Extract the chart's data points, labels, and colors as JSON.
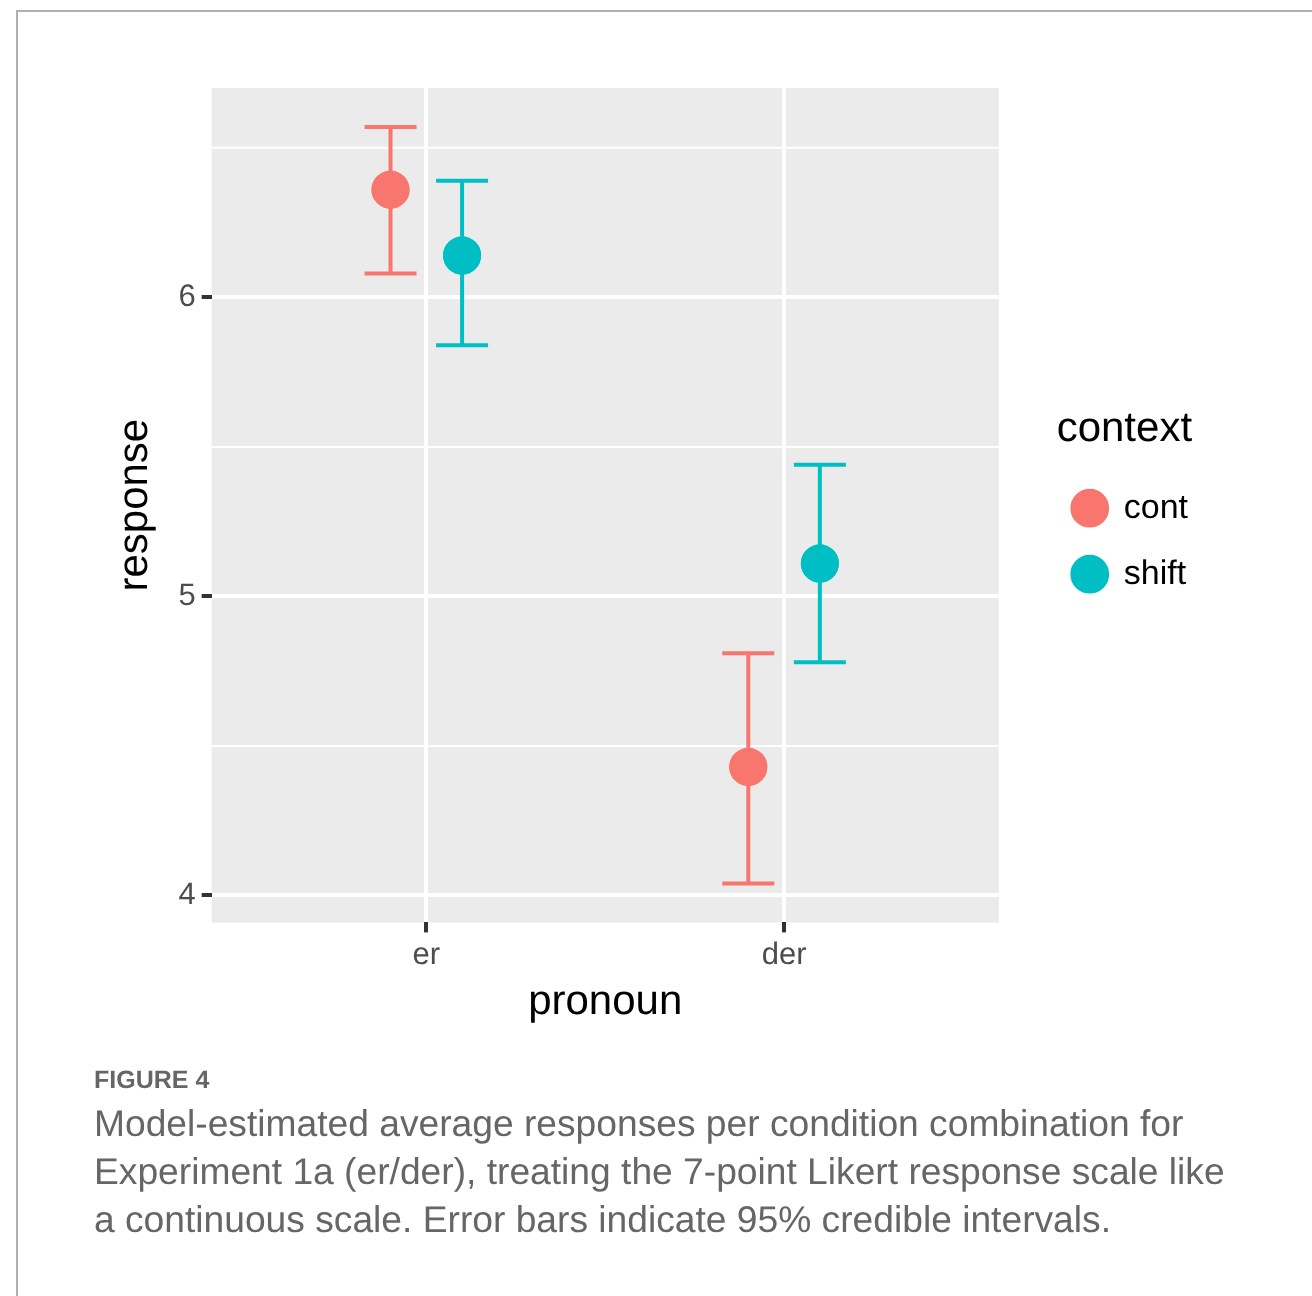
{
  "chart_data": {
    "type": "scatter",
    "xlabel": "pronoun",
    "ylabel": "response",
    "legend_title": "context",
    "categories": [
      "er",
      "der"
    ],
    "series": [
      {
        "name": "cont",
        "color": "#f8766d",
        "values": [
          6.36,
          4.43
        ],
        "errors": [
          [
            6.08,
            6.57
          ],
          [
            4.04,
            4.81
          ]
        ]
      },
      {
        "name": "shift",
        "color": "#00bfc4",
        "values": [
          6.14,
          5.11
        ],
        "errors": [
          [
            5.84,
            6.39
          ],
          [
            4.78,
            5.44
          ]
        ]
      }
    ],
    "ylim": [
      3.91,
      6.7
    ],
    "yticks": [
      4,
      5,
      6
    ],
    "grid": true,
    "legend": "right",
    "marker": "circle",
    "annotations": [
      "FIGURE 4",
      "Model-estimated average responses per condition combination for Experiment 1a (er/der), treating the 7-point Likert response scale like a continuous scale. Error bars indicate 95% credible intervals."
    ]
  }
}
